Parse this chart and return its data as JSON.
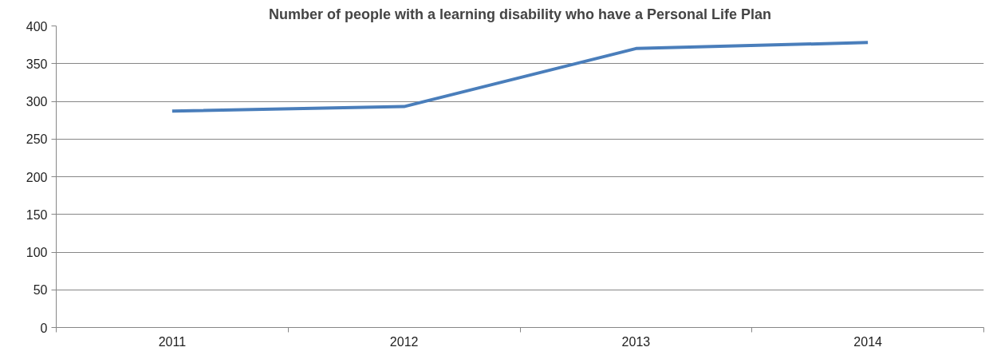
{
  "chart_data": {
    "type": "line",
    "title": "Number of people with a learning disability who have a Personal Life Plan",
    "categories": [
      "2011",
      "2012",
      "2013",
      "2014"
    ],
    "series": [
      {
        "color": "#4a7ebb",
        "values": [
          287,
          293,
          370,
          378
        ]
      }
    ],
    "ylim": [
      0,
      400
    ],
    "yticks": [
      0,
      50,
      100,
      150,
      200,
      250,
      300,
      350,
      400
    ],
    "grid": "y",
    "marker": "none",
    "line_style": "solid"
  }
}
